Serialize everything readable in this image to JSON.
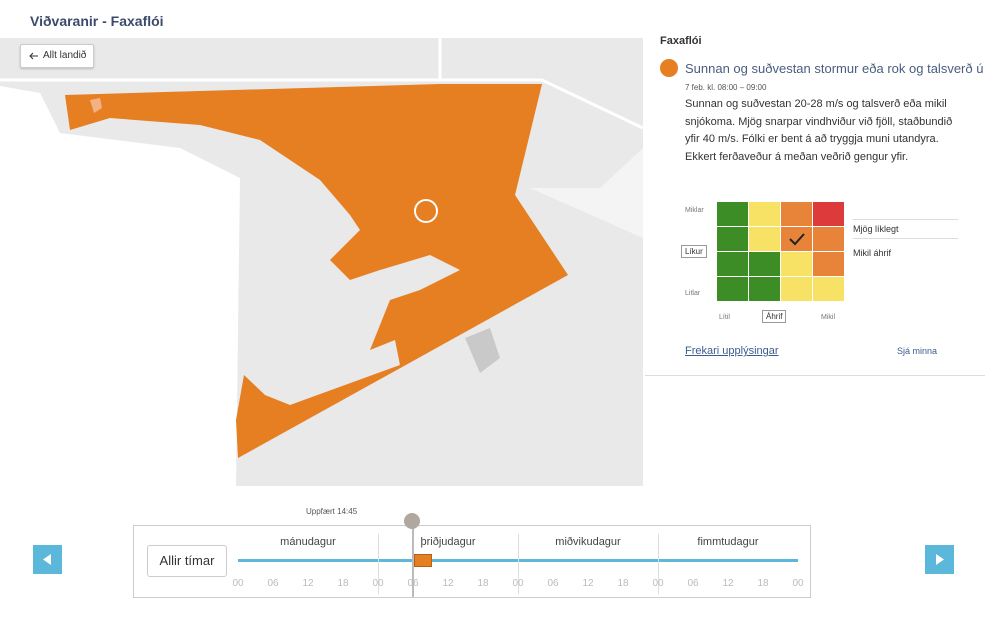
{
  "header": {
    "title": "Viðvaranir - Faxaflói"
  },
  "map": {
    "back_button": "Allt landið"
  },
  "warning": {
    "region": "Faxaflói",
    "title": "Sunnan og suðvestan stormur eða rok og talsverð ú",
    "time": "7 feb. kl. 08:00 – 09:00",
    "description": "Sunnan og suðvestan 20-28 m/s og talsverð eða mikil snjókoma. Mjög snarpar vindhviður við fjöll, staðbundið yfir 40 m/s. Fólki er bent á að tryggja muni utandyra. Ekkert ferðaveður á meðan veðrið gengur yfir.",
    "matrix": {
      "likelihood_high": "Miklar",
      "likelihood_label": "Líkur",
      "likelihood_low": "Litlar",
      "impact_low": "Lítil",
      "impact_label": "Áhrif",
      "impact_high": "Mikil",
      "likelihood_value": "Mjög líklegt",
      "impact_value": "Mikil áhrif"
    },
    "more_info": "Frekari upplýsingar",
    "see_less": "Sjá minna"
  },
  "timeline": {
    "updated": "Uppfært 14:45",
    "all_times": "Allir tímar",
    "days": [
      "mánudagur",
      "þriðjudagur",
      "miðvikudagur",
      "fimmtudagur"
    ],
    "hours": [
      "00",
      "06",
      "12",
      "18",
      "00",
      "06",
      "12",
      "18",
      "00",
      "06",
      "12",
      "18",
      "00",
      "06",
      "12",
      "18",
      "00"
    ]
  }
}
